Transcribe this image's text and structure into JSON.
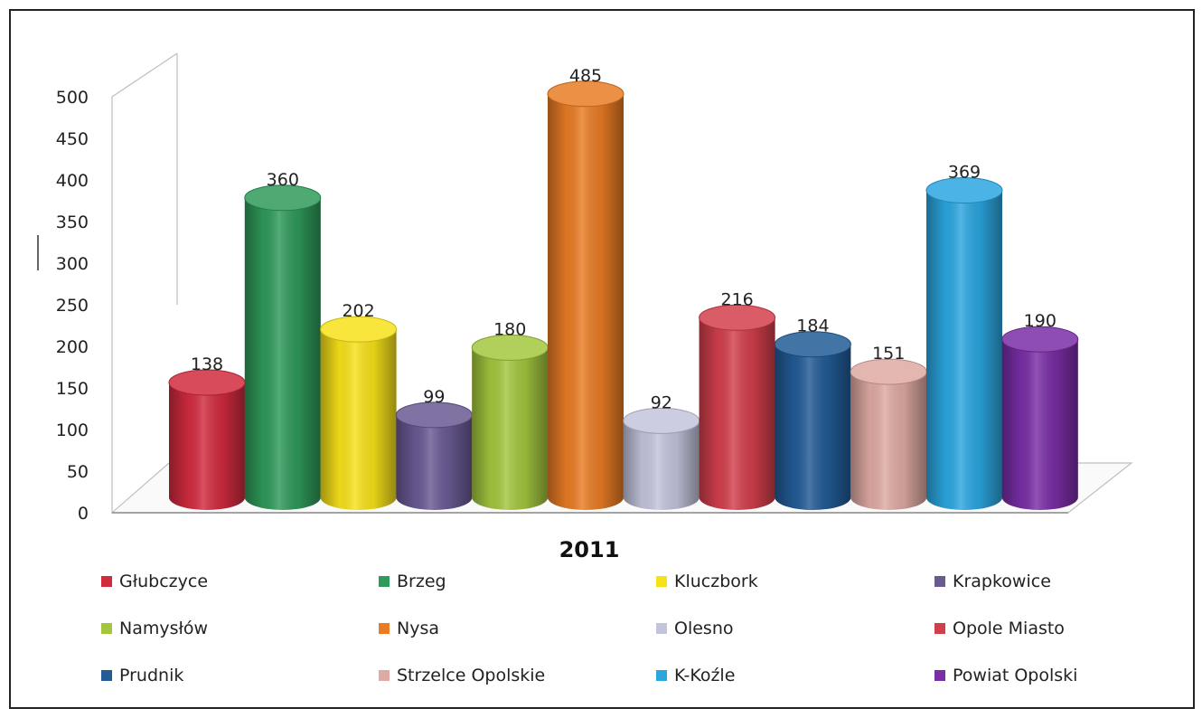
{
  "chart_data": {
    "type": "bar",
    "style": "3d-cylinder",
    "category": "2011",
    "series": [
      {
        "name": "Głubczyce",
        "value": 138,
        "color": "#d12b3e"
      },
      {
        "name": "Brzeg",
        "value": 360,
        "color": "#2f9a5a"
      },
      {
        "name": "Kluczbork",
        "value": 202,
        "color": "#f7e21a"
      },
      {
        "name": "Krapkowice",
        "value": 99,
        "color": "#6a5a94"
      },
      {
        "name": "Namysłów",
        "value": 180,
        "color": "#a3c63e"
      },
      {
        "name": "Nysa",
        "value": 485,
        "color": "#e97c24"
      },
      {
        "name": "Olesno",
        "value": 92,
        "color": "#c3c4dc"
      },
      {
        "name": "Opole Miasto",
        "value": 216,
        "color": "#d23f4c"
      },
      {
        "name": "Prudnik",
        "value": 184,
        "color": "#225b96"
      },
      {
        "name": "Strzelce Opolskie",
        "value": 151,
        "color": "#deaaa2"
      },
      {
        "name": "K-Koźle",
        "value": 369,
        "color": "#2ba6e0"
      },
      {
        "name": "Powiat Opolski",
        "value": 190,
        "color": "#7a2ea6"
      }
    ],
    "ylim": [
      0,
      500
    ],
    "yticks": [
      0,
      50,
      100,
      150,
      200,
      250,
      300,
      350,
      400,
      450,
      500
    ],
    "grid": false,
    "legend_position": "bottom"
  }
}
